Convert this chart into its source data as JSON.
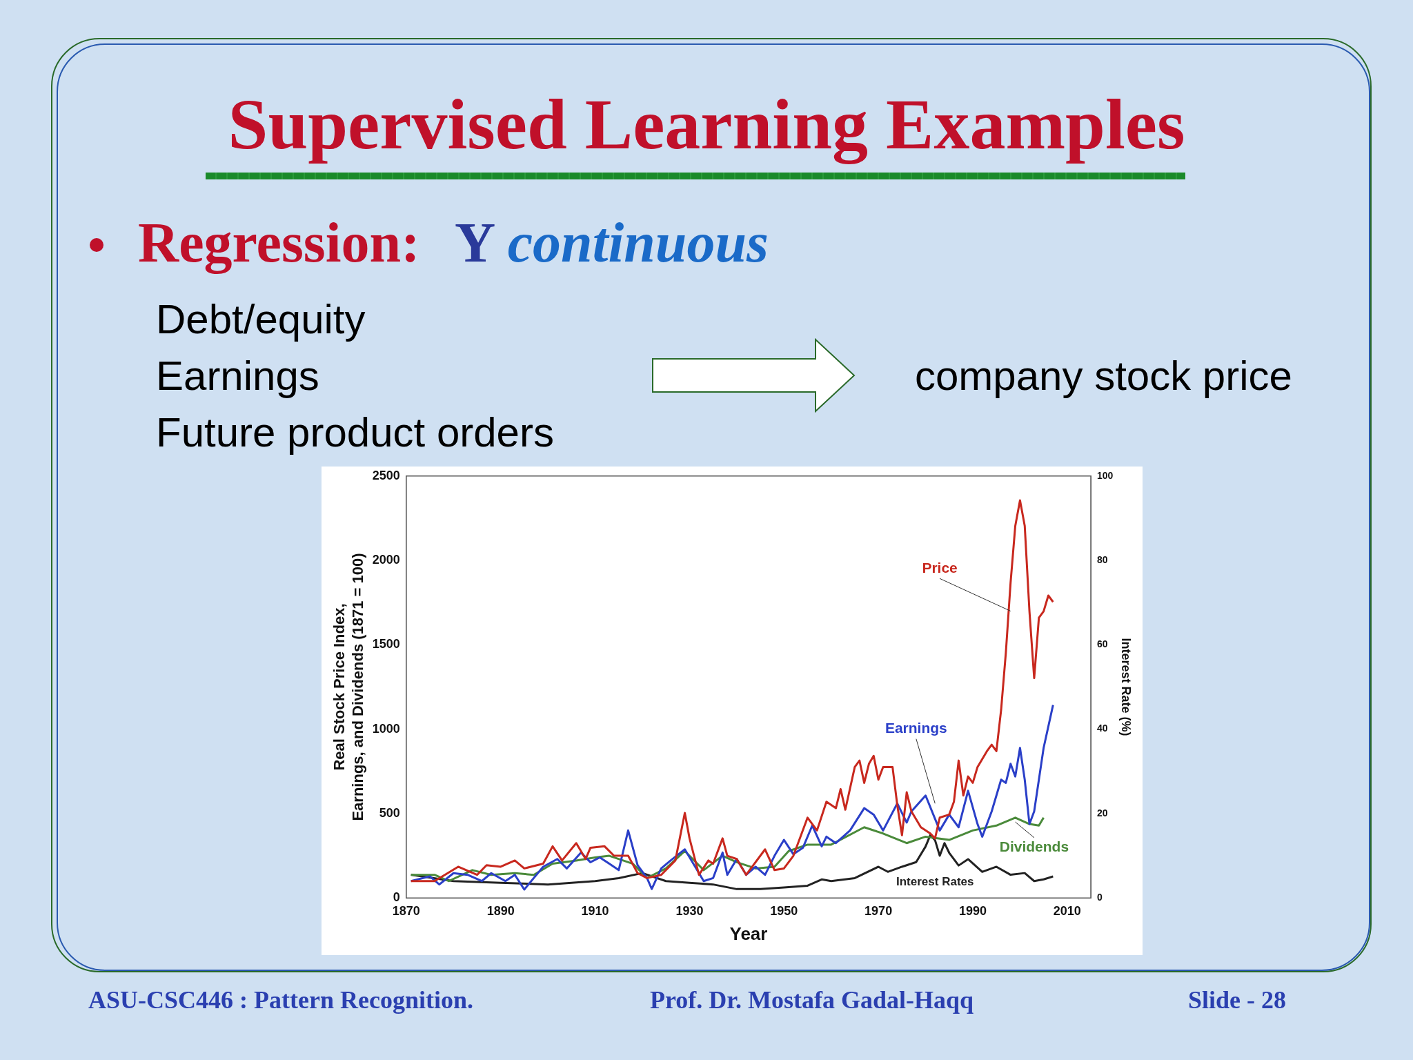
{
  "chart_data": {
    "type": "line",
    "title": "Supervised Learning Examples",
    "subtitle": "Regression: Y continuous",
    "xlabel": "Year",
    "ylabel": "Real Stock Price Index,\nEarnings, and Dividends (1871 = 100)",
    "y2label": "Interest Rate (%)",
    "annotations": [
      "Debt/equity",
      "Earnings",
      "Future product orders",
      "company stock price",
      "ASU-CSC446 :  Pattern Recognition.",
      "Prof. Dr. Mostafa Gadal-Haqq",
      "Slide - 28"
    ],
    "xlim": [
      1870,
      2015
    ],
    "xticks": [
      1870,
      1890,
      1910,
      1930,
      1950,
      1970,
      1990,
      2010
    ],
    "ylim": [
      0,
      2500
    ],
    "yticks": [
      0,
      500,
      1000,
      1500,
      2000,
      2500
    ],
    "y2lim": [
      0,
      100
    ],
    "y2ticks": [
      0,
      20,
      40,
      60,
      80,
      100
    ],
    "grid": false,
    "legend": false,
    "marker": "none",
    "line_style": "solid",
    "series": [
      {
        "name": "Price",
        "color": "#c8281e",
        "x": [
          1871,
          1876,
          1881,
          1885,
          1887,
          1890,
          1893,
          1895,
          1899,
          1901,
          1903,
          1906,
          1908,
          1909,
          1912,
          1914,
          1917,
          1919,
          1921,
          1924,
          1927,
          1929,
          1930,
          1932,
          1934,
          1935,
          1937,
          1938,
          1940,
          1942,
          1946,
          1948,
          1950,
          1952,
          1955,
          1957,
          1959,
          1961,
          1962,
          1963,
          1965,
          1966,
          1967,
          1968,
          1969,
          1970,
          1971,
          1973,
          1974,
          1975,
          1976,
          1977,
          1979,
          1981,
          1982,
          1983,
          1985,
          1986,
          1987,
          1988,
          1989,
          1990,
          1991,
          1993,
          1994,
          1995,
          1996,
          1997,
          1998,
          1999,
          2000,
          2001,
          2002,
          2003,
          2004,
          2005,
          2006,
          2007
        ],
        "values": [
          100,
          100,
          185,
          137,
          194,
          185,
          222,
          175,
          203,
          306,
          222,
          325,
          231,
          297,
          306,
          250,
          250,
          147,
          118,
          137,
          222,
          504,
          353,
          137,
          222,
          203,
          353,
          250,
          231,
          137,
          288,
          165,
          175,
          250,
          476,
          400,
          570,
          532,
          645,
          523,
          776,
          814,
          682,
          795,
          842,
          701,
          776,
          776,
          551,
          372,
          626,
          513,
          419,
          382,
          353,
          476,
          494,
          570,
          814,
          607,
          720,
          682,
          776,
          870,
          908,
          870,
          1115,
          1453,
          1867,
          2205,
          2356,
          2205,
          1698,
          1303,
          1660,
          1698,
          1792,
          1754
        ]
      },
      {
        "name": "Earnings",
        "color": "#2a3fc8",
        "x": [
          1871,
          1875,
          1877,
          1880,
          1883,
          1886,
          1888,
          1891,
          1893,
          1895,
          1897,
          1899,
          1902,
          1904,
          1907,
          1909,
          1911,
          1913,
          1915,
          1917,
          1919,
          1921,
          1922,
          1924,
          1926,
          1929,
          1931,
          1933,
          1935,
          1937,
          1938,
          1940,
          1942,
          1944,
          1946,
          1948,
          1950,
          1952,
          1954,
          1956,
          1958,
          1959,
          1961,
          1964,
          1967,
          1969,
          1971,
          1974,
          1976,
          1977,
          1980,
          1983,
          1985,
          1987,
          1989,
          1991,
          1992,
          1994,
          1996,
          1997,
          1998,
          1999,
          2000,
          2001,
          2002,
          2003,
          2004,
          2005,
          2007
        ],
        "values": [
          100,
          128,
          80,
          147,
          137,
          100,
          147,
          100,
          137,
          50,
          118,
          185,
          231,
          175,
          269,
          212,
          240,
          203,
          165,
          400,
          194,
          118,
          53,
          175,
          222,
          288,
          194,
          100,
          118,
          269,
          137,
          231,
          137,
          185,
          137,
          250,
          344,
          259,
          297,
          429,
          306,
          363,
          325,
          400,
          532,
          494,
          400,
          560,
          447,
          513,
          607,
          400,
          494,
          419,
          635,
          438,
          363,
          513,
          701,
          682,
          795,
          720,
          889,
          701,
          438,
          513,
          701,
          889,
          1143
        ]
      },
      {
        "name": "Dividends",
        "color": "#4a8a3a",
        "x": [
          1871,
          1876,
          1879,
          1884,
          1888,
          1893,
          1897,
          1901,
          1906,
          1910,
          1913,
          1918,
          1921,
          1925,
          1929,
          1933,
          1937,
          1940,
          1944,
          1948,
          1951,
          1955,
          1960,
          1967,
          1971,
          1976,
          1980,
          1985,
          1990,
          1995,
          1999,
          2002,
          2004,
          2005
        ],
        "values": [
          137,
          137,
          100,
          165,
          137,
          147,
          137,
          203,
          222,
          240,
          250,
          203,
          118,
          175,
          278,
          165,
          250,
          212,
          175,
          185,
          278,
          316,
          316,
          419,
          382,
          325,
          363,
          344,
          400,
          429,
          476,
          438,
          429,
          476
        ]
      },
      {
        "name": "Interest Rates",
        "color": "#222222",
        "axis": "y2",
        "x": [
          1871,
          1880,
          1890,
          1900,
          1910,
          1915,
          1920,
          1925,
          1930,
          1935,
          1940,
          1945,
          1950,
          1955,
          1958,
          1960,
          1965,
          1970,
          1972,
          1975,
          1978,
          1980,
          1981,
          1982,
          1983,
          1984,
          1985,
          1987,
          1989,
          1992,
          1995,
          1998,
          2001,
          2003,
          2005,
          2007
        ],
        "values": [
          5.5,
          4.0,
          3.6,
          3.2,
          4.0,
          4.7,
          5.9,
          4.0,
          3.6,
          3.2,
          2.1,
          2.1,
          2.5,
          2.9,
          4.4,
          4.0,
          4.7,
          7.4,
          6.2,
          7.4,
          8.5,
          12.2,
          14.9,
          13.7,
          10.0,
          13.0,
          10.7,
          7.7,
          9.2,
          6.2,
          7.4,
          5.5,
          5.9,
          4.0,
          4.4,
          5.1
        ]
      }
    ]
  }
}
